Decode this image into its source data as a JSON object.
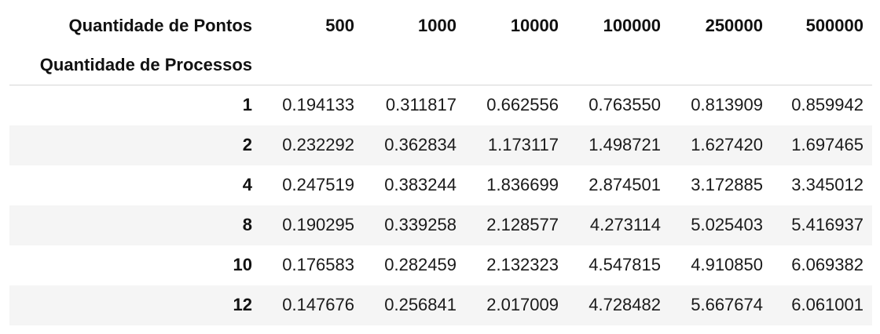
{
  "table": {
    "columns_title": "Quantidade de Pontos",
    "index_title": "Quantidade de Processos",
    "columns": [
      "500",
      "1000",
      "10000",
      "100000",
      "250000",
      "500000"
    ],
    "rows": [
      {
        "index": "1",
        "values": [
          "0.194133",
          "0.311817",
          "0.662556",
          "0.763550",
          "0.813909",
          "0.859942"
        ]
      },
      {
        "index": "2",
        "values": [
          "0.232292",
          "0.362834",
          "1.173117",
          "1.498721",
          "1.627420",
          "1.697465"
        ]
      },
      {
        "index": "4",
        "values": [
          "0.247519",
          "0.383244",
          "1.836699",
          "2.874501",
          "3.172885",
          "3.345012"
        ]
      },
      {
        "index": "8",
        "values": [
          "0.190295",
          "0.339258",
          "2.128577",
          "4.273114",
          "5.025403",
          "5.416937"
        ]
      },
      {
        "index": "10",
        "values": [
          "0.176583",
          "0.282459",
          "2.132323",
          "4.547815",
          "4.910850",
          "6.069382"
        ]
      },
      {
        "index": "12",
        "values": [
          "0.147676",
          "0.256841",
          "2.017009",
          "4.728482",
          "5.667674",
          "6.061001"
        ]
      }
    ]
  }
}
